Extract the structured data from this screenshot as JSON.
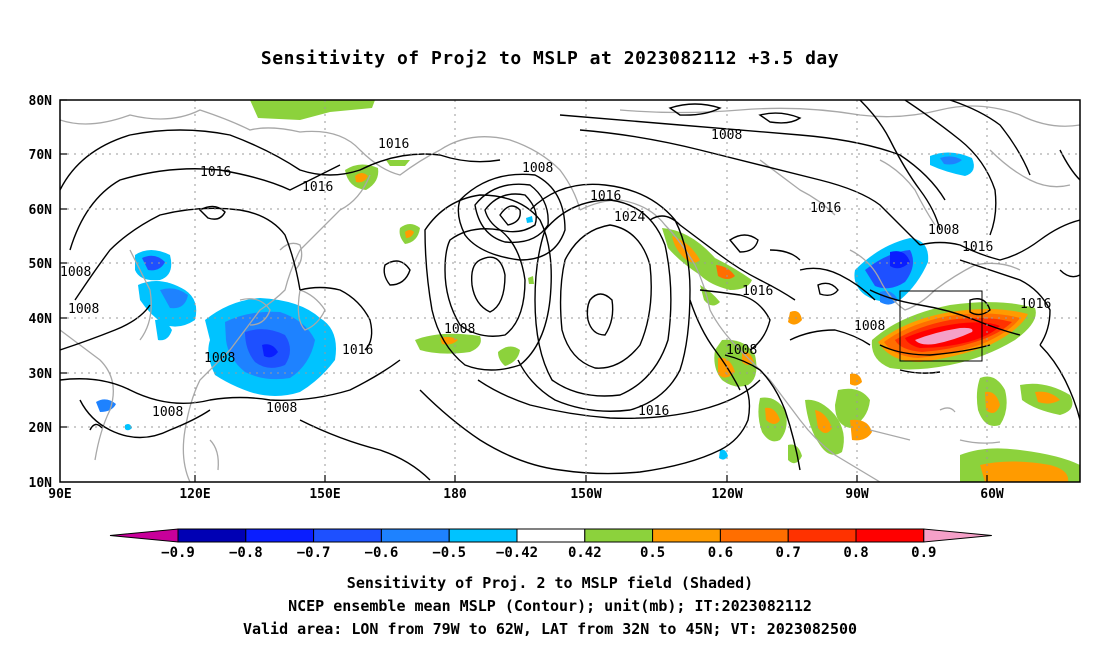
{
  "title": "Sensitivity of Proj2 to MSLP at 2023082112 +3.5 day",
  "y_ticks": [
    "80N",
    "70N",
    "60N",
    "50N",
    "40N",
    "30N",
    "20N",
    "10N"
  ],
  "x_ticks": [
    "90E",
    "120E",
    "150E",
    "180",
    "150W",
    "120W",
    "90W",
    "60W"
  ],
  "contour_labels": [
    {
      "text": "1016",
      "id": "c1"
    },
    {
      "text": "1016",
      "id": "c2"
    },
    {
      "text": "1016",
      "id": "c3"
    },
    {
      "text": "1008",
      "id": "c4"
    },
    {
      "text": "1008",
      "id": "c5"
    },
    {
      "text": "1008",
      "id": "c6"
    },
    {
      "text": "1016",
      "id": "c7"
    },
    {
      "text": "1024",
      "id": "c8"
    },
    {
      "text": "1008",
      "id": "c9"
    },
    {
      "text": "1008",
      "id": "c10"
    },
    {
      "text": "1016",
      "id": "c11"
    },
    {
      "text": "1008",
      "id": "c12"
    },
    {
      "text": "1016",
      "id": "c13"
    },
    {
      "text": "1008",
      "id": "c14"
    },
    {
      "text": "1016",
      "id": "c15"
    },
    {
      "text": "1008",
      "id": "c16"
    },
    {
      "text": "1008",
      "id": "c17"
    },
    {
      "text": "1016",
      "id": "c18"
    },
    {
      "text": "1008",
      "id": "c19"
    },
    {
      "text": "1016",
      "id": "c20"
    },
    {
      "text": "1016",
      "id": "c21"
    },
    {
      "text": "1008",
      "id": "c22"
    },
    {
      "text": "1016",
      "id": "c23"
    }
  ],
  "colorbar": {
    "labels": [
      "-0.9",
      "-0.8",
      "-0.7",
      "-0.6",
      "-0.5",
      "-0.42",
      "0.42",
      "0.5",
      "0.6",
      "0.7",
      "0.8",
      "0.9"
    ],
    "colors": [
      "#c8009a",
      "#0000b4",
      "#0a1eff",
      "#1e50ff",
      "#1e82ff",
      "#00c3ff",
      "#ffffff",
      "#8cd23c",
      "#ff9b00",
      "#ff6e00",
      "#ff3200",
      "#ff0000",
      "#f5a0c8"
    ]
  },
  "captions": {
    "line1": "Sensitivity of Proj. 2 to MSLP field (Shaded)",
    "line2": "NCEP ensemble mean MSLP (Contour); unit(mb); IT:2023082112",
    "line3": "Valid area: LON from 79W to 62W, LAT from 32N to 45N; VT: 2023082500"
  }
}
